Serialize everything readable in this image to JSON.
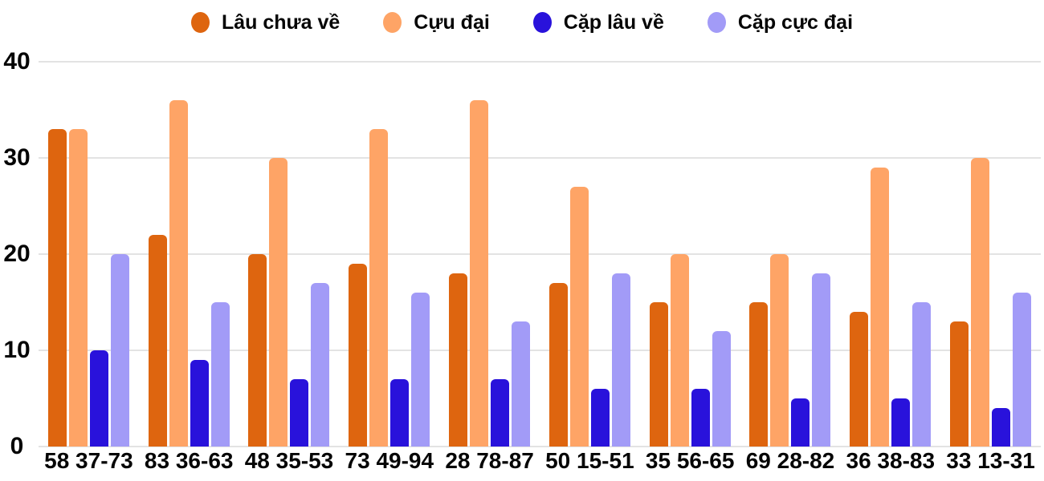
{
  "chart_data": {
    "type": "bar",
    "title": "",
    "xlabel": "",
    "ylabel": "",
    "categories": [
      "58 37-73",
      "83 36-63",
      "48 35-53",
      "73 49-94",
      "28 78-87",
      "50 15-51",
      "35 56-65",
      "69 28-82",
      "36 38-83",
      "33 13-31"
    ],
    "series": [
      {
        "name": "Lâu chưa về",
        "color": "#DE650F",
        "values": [
          33,
          22,
          20,
          19,
          18,
          17,
          15,
          15,
          14,
          13
        ]
      },
      {
        "name": "Cựu đại",
        "color": "#FEA466",
        "values": [
          33,
          36,
          30,
          33,
          36,
          27,
          20,
          20,
          29,
          30
        ]
      },
      {
        "name": "Cặp lâu về",
        "color": "#2912DB",
        "values": [
          10,
          9,
          7,
          7,
          7,
          6,
          6,
          5,
          5,
          4
        ]
      },
      {
        "name": "Cặp cực đại",
        "color": "#A29BF7",
        "values": [
          20,
          15,
          17,
          16,
          13,
          18,
          12,
          18,
          15,
          16
        ]
      }
    ],
    "ylim": [
      0,
      40
    ],
    "yticks": [
      0,
      10,
      20,
      30,
      40
    ],
    "grid": true,
    "legend_position": "top"
  },
  "colors": {
    "background": "#ffffff",
    "gridline": "#e3e3e3",
    "text": "#050505"
  }
}
